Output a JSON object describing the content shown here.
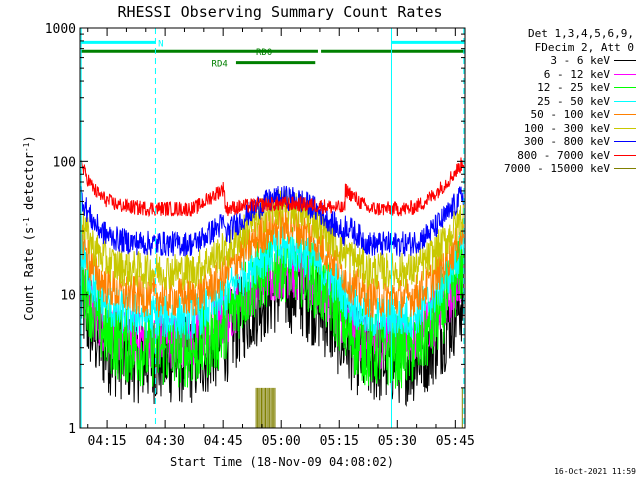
{
  "chart_data": {
    "type": "line",
    "title": "RHESSI Observing Summary Count Rates",
    "xlabel": "Start Time (18-Nov-09 04:08:02)",
    "ylabel_pre": "Count Rate (s",
    "ylabel_sup1": "-1",
    "ylabel_mid": " detector",
    "ylabel_sup2": "-1",
    "ylabel_post": ")",
    "y_scale": "log",
    "ylim": [
      1,
      1000
    ],
    "xlim_minutes": [
      248.0,
      347.5
    ],
    "xticks": [
      {
        "label": "04:15",
        "minute": 255
      },
      {
        "label": "04:30",
        "minute": 270
      },
      {
        "label": "04:45",
        "minute": 285
      },
      {
        "label": "05:00",
        "minute": 300
      },
      {
        "label": "05:15",
        "minute": 315
      },
      {
        "label": "05:30",
        "minute": 330
      },
      {
        "label": "05:45",
        "minute": 345
      }
    ],
    "yticks": [
      {
        "label": "1",
        "value": 1
      },
      {
        "label": "10",
        "value": 10
      },
      {
        "label": "100",
        "value": 100
      },
      {
        "label": "1000",
        "value": 1000
      }
    ],
    "legend_header": [
      "Det 1,3,4,5,6,9,",
      "FDecim 2, Att 0"
    ],
    "series": [
      {
        "name": "3 - 6 keV",
        "color": "#000000",
        "night": 3.2,
        "day_low": 4.5,
        "day_peak": 11,
        "top": 10,
        "noise": 0.35
      },
      {
        "name": "6 - 12 keV",
        "color": "#ff00ff",
        "night": 4.5,
        "day_low": 6.5,
        "day_peak": 15,
        "top": 16,
        "noise": 0.22
      },
      {
        "name": "12 - 25 keV",
        "color": "#00ff00",
        "night": 3.8,
        "day_low": 6.2,
        "day_peak": 17,
        "top": 19,
        "noise": 0.3
      },
      {
        "name": "25 - 50 keV",
        "color": "#00ffff",
        "night": 6.8,
        "day_low": 10,
        "day_peak": 22,
        "top": 25,
        "noise": 0.18
      },
      {
        "name": "50 - 100 keV",
        "color": "#ff8000",
        "night": 9.5,
        "day_low": 14,
        "day_peak": 33,
        "top": 31,
        "noise": 0.16
      },
      {
        "name": "100 - 300 keV",
        "color": "#c8c800",
        "night": 15,
        "day_low": 20,
        "day_peak": 45,
        "top": 42,
        "noise": 0.15
      },
      {
        "name": "300 - 800 keV",
        "color": "#0000ff",
        "night": 24,
        "day_low": 28,
        "day_peak": 53,
        "top": 60,
        "noise": 0.1
      },
      {
        "name": "800 - 7000 keV",
        "color": "#ff0000",
        "night": 44,
        "day_low": 44,
        "day_peak": 48,
        "top": 103,
        "noise": 0.06
      },
      {
        "name": "7000 - 15000 keV",
        "color": "#808000",
        "night": 0,
        "day_low": 0,
        "day_peak": 0,
        "top": 0,
        "noise": 0
      }
    ],
    "sunlight_minutes": [
      285.5,
      316.5
    ],
    "saa_spikes_minute": [
      293.5,
      298.5
    ],
    "saa_spike_level": 2,
    "vertical_lines": [
      {
        "minute": 248.3,
        "style": "solid",
        "color": "#00ffff"
      },
      {
        "minute": 267.5,
        "style": "dashed",
        "color": "#00ffff"
      },
      {
        "minute": 328.5,
        "style": "solid",
        "color": "#00ffff"
      },
      {
        "minute": 347.2,
        "style": "dashed",
        "color": "#00ffff"
      }
    ],
    "flag_bars": [
      {
        "label": "N",
        "color": "#00ffff",
        "segments": [
          [
            248.3,
            267.5
          ],
          [
            328.5,
            347.2
          ]
        ],
        "value": 780,
        "label_minute": 268.2
      },
      {
        "label": "RD0",
        "color": "#008000",
        "segments": [
          [
            248.3,
            309.5
          ],
          [
            310.3,
            347.5
          ]
        ],
        "value": 670,
        "label_minute": 293.5
      },
      {
        "label": "RD4",
        "color": "#008000",
        "segments": [
          [
            288.3,
            308.8
          ]
        ],
        "value": 550,
        "label_minute": 282
      }
    ]
  },
  "footer_timestamp": "16-Oct-2021 11:59"
}
